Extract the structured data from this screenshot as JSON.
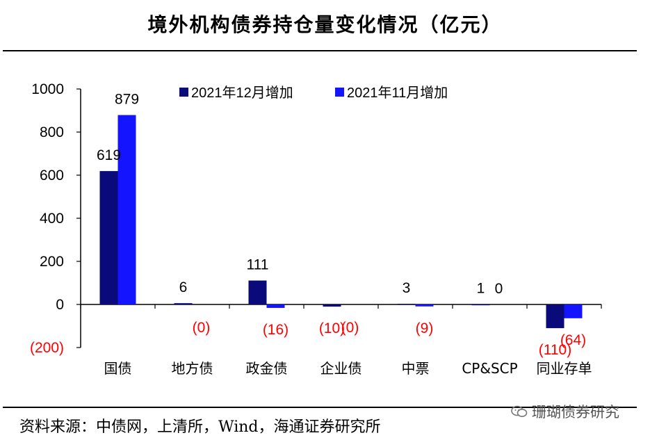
{
  "title": "境外机构债券持仓量变化情况（亿元）",
  "source": "资料来源：中债网，上清所，Wind，海通证券研究所",
  "watermark": "珊瑚债券研究",
  "colors": {
    "dec": "#0a0a7a",
    "nov": "#1414ff",
    "neg_label": "#ff0000"
  },
  "chart_data": {
    "type": "bar",
    "categories": [
      "国债",
      "地方债",
      "政金债",
      "企业债",
      "中票",
      "CP&SCP",
      "同业存单"
    ],
    "series": [
      {
        "name": "2021年12月增加",
        "values": [
          619,
          6,
          111,
          -10,
          3,
          1,
          -110
        ],
        "labels": [
          "619",
          "6",
          "111",
          "(10)",
          "3",
          "1",
          "(110)"
        ]
      },
      {
        "name": "2021年11月增加",
        "values": [
          879,
          0,
          -16,
          0,
          -9,
          0,
          -64
        ],
        "labels": [
          "879",
          "(0)",
          "(16)",
          "(0)",
          "(9)",
          "0",
          "(64)"
        ]
      }
    ],
    "yticks": [
      "1000",
      "800",
      "600",
      "400",
      "200",
      "0",
      "(200)"
    ],
    "ylim": [
      -200,
      1000
    ],
    "legend_position": "top"
  }
}
